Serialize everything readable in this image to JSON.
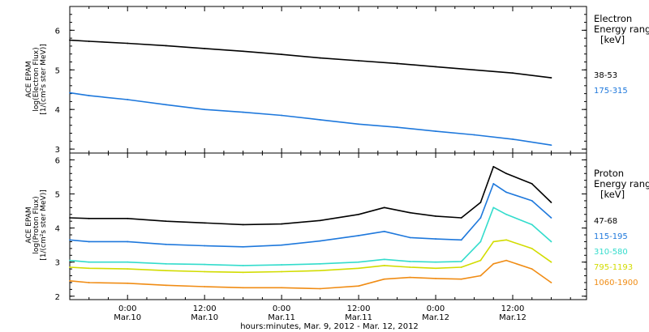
{
  "xaxis": {
    "title": "hours:minutes, Mar.  9, 2012 - Mar. 12, 2012",
    "range": [
      "2012-03-09T15:00",
      "2012-03-12T23:30"
    ],
    "ticks": [
      {
        "at": "2012-03-10T00:00",
        "time": "0:00",
        "date": "Mar.10"
      },
      {
        "at": "2012-03-10T12:00",
        "time": "12:00",
        "date": "Mar.10"
      },
      {
        "at": "2012-03-11T00:00",
        "time": "0:00",
        "date": "Mar.11"
      },
      {
        "at": "2012-03-11T12:00",
        "time": "12:00",
        "date": "Mar.11"
      },
      {
        "at": "2012-03-12T00:00",
        "time": "0:00",
        "date": "Mar.12"
      },
      {
        "at": "2012-03-12T12:00",
        "time": "12:00",
        "date": "Mar.12"
      }
    ],
    "minor_tick_hours": 3
  },
  "chart_data": [
    {
      "type": "line",
      "panel": "electron",
      "ylabel_lines": [
        "ACE EPAM",
        "log(Electron Flux)",
        "[1/(cm²s ster MeV)]"
      ],
      "ylim": [
        2.9,
        6.6
      ],
      "yticks": [
        3,
        4,
        5,
        6
      ],
      "legend_title_lines": [
        "Electron",
        "Energy ranges",
        "[keV]"
      ],
      "series": [
        {
          "name": "38-53",
          "color": "#000000",
          "x": [
            "2012-03-09T15:00",
            "2012-03-09T18:00",
            "2012-03-10T00:00",
            "2012-03-10T06:00",
            "2012-03-10T12:00",
            "2012-03-10T18:00",
            "2012-03-11T00:00",
            "2012-03-11T06:00",
            "2012-03-11T12:00",
            "2012-03-11T18:00",
            "2012-03-12T00:00",
            "2012-03-12T06:00",
            "2012-03-12T12:00",
            "2012-03-12T18:00"
          ],
          "values": [
            5.75,
            5.72,
            5.67,
            5.61,
            5.54,
            5.47,
            5.39,
            5.3,
            5.23,
            5.16,
            5.08,
            5.0,
            4.92,
            4.8
          ]
        },
        {
          "name": "175-315",
          "color": "#1e78dc",
          "x": [
            "2012-03-09T15:00",
            "2012-03-09T18:00",
            "2012-03-10T00:00",
            "2012-03-10T06:00",
            "2012-03-10T12:00",
            "2012-03-10T18:00",
            "2012-03-11T00:00",
            "2012-03-11T06:00",
            "2012-03-11T12:00",
            "2012-03-11T18:00",
            "2012-03-12T00:00",
            "2012-03-12T06:00",
            "2012-03-12T12:00",
            "2012-03-12T18:00"
          ],
          "values": [
            4.42,
            4.35,
            4.25,
            4.12,
            4.0,
            3.93,
            3.85,
            3.74,
            3.63,
            3.55,
            3.45,
            3.36,
            3.25,
            3.1
          ]
        }
      ]
    },
    {
      "type": "line",
      "panel": "proton",
      "ylabel_lines": [
        "ACE EPAM",
        "log(Proton Flux)",
        "[1/(cm²s ster MeV)]"
      ],
      "ylim": [
        1.9,
        6.2
      ],
      "yticks": [
        2,
        3,
        4,
        5,
        6
      ],
      "legend_title_lines": [
        "Proton",
        "Energy ranges",
        "[keV]"
      ],
      "series": [
        {
          "name": "47-68",
          "color": "#000000",
          "x": [
            "2012-03-09T15:00",
            "2012-03-09T18:00",
            "2012-03-10T00:00",
            "2012-03-10T06:00",
            "2012-03-10T12:00",
            "2012-03-10T18:00",
            "2012-03-11T00:00",
            "2012-03-11T06:00",
            "2012-03-11T12:00",
            "2012-03-11T16:00",
            "2012-03-11T20:00",
            "2012-03-12T00:00",
            "2012-03-12T04:00",
            "2012-03-12T07:00",
            "2012-03-12T09:00",
            "2012-03-12T11:00",
            "2012-03-12T15:00",
            "2012-03-12T18:00"
          ],
          "values": [
            4.3,
            4.28,
            4.28,
            4.2,
            4.15,
            4.1,
            4.12,
            4.22,
            4.4,
            4.6,
            4.45,
            4.35,
            4.3,
            4.75,
            5.8,
            5.6,
            5.3,
            4.75
          ]
        },
        {
          "name": "115-195",
          "color": "#1e78dc",
          "x": [
            "2012-03-09T15:00",
            "2012-03-09T18:00",
            "2012-03-10T00:00",
            "2012-03-10T06:00",
            "2012-03-10T12:00",
            "2012-03-10T18:00",
            "2012-03-11T00:00",
            "2012-03-11T06:00",
            "2012-03-11T12:00",
            "2012-03-11T16:00",
            "2012-03-11T20:00",
            "2012-03-12T00:00",
            "2012-03-12T04:00",
            "2012-03-12T07:00",
            "2012-03-12T09:00",
            "2012-03-12T11:00",
            "2012-03-12T15:00",
            "2012-03-12T18:00"
          ],
          "values": [
            3.65,
            3.6,
            3.6,
            3.52,
            3.48,
            3.45,
            3.5,
            3.62,
            3.78,
            3.9,
            3.72,
            3.68,
            3.65,
            4.3,
            5.3,
            5.05,
            4.8,
            4.3
          ]
        },
        {
          "name": "310-580",
          "color": "#33dccc",
          "x": [
            "2012-03-09T15:00",
            "2012-03-09T18:00",
            "2012-03-10T00:00",
            "2012-03-10T06:00",
            "2012-03-10T12:00",
            "2012-03-10T18:00",
            "2012-03-11T00:00",
            "2012-03-11T06:00",
            "2012-03-11T12:00",
            "2012-03-11T16:00",
            "2012-03-11T20:00",
            "2012-03-12T00:00",
            "2012-03-12T04:00",
            "2012-03-12T07:00",
            "2012-03-12T09:00",
            "2012-03-12T11:00",
            "2012-03-12T15:00",
            "2012-03-12T18:00"
          ],
          "values": [
            3.05,
            3.0,
            3.0,
            2.95,
            2.93,
            2.9,
            2.92,
            2.95,
            3.0,
            3.08,
            3.02,
            3.0,
            3.02,
            3.6,
            4.6,
            4.4,
            4.1,
            3.6
          ]
        },
        {
          "name": "795-1193",
          "color": "#d2dc00",
          "x": [
            "2012-03-09T15:00",
            "2012-03-09T18:00",
            "2012-03-10T00:00",
            "2012-03-10T06:00",
            "2012-03-10T12:00",
            "2012-03-10T18:00",
            "2012-03-11T00:00",
            "2012-03-11T06:00",
            "2012-03-11T12:00",
            "2012-03-11T16:00",
            "2012-03-11T20:00",
            "2012-03-12T00:00",
            "2012-03-12T04:00",
            "2012-03-12T07:00",
            "2012-03-12T09:00",
            "2012-03-12T11:00",
            "2012-03-12T15:00",
            "2012-03-12T18:00"
          ],
          "values": [
            2.85,
            2.82,
            2.8,
            2.75,
            2.72,
            2.7,
            2.72,
            2.75,
            2.82,
            2.9,
            2.85,
            2.82,
            2.85,
            3.05,
            3.6,
            3.65,
            3.4,
            3.0
          ]
        },
        {
          "name": "1060-1900",
          "color": "#f08c14",
          "x": [
            "2012-03-09T15:00",
            "2012-03-09T18:00",
            "2012-03-10T00:00",
            "2012-03-10T06:00",
            "2012-03-10T12:00",
            "2012-03-10T18:00",
            "2012-03-11T00:00",
            "2012-03-11T06:00",
            "2012-03-11T12:00",
            "2012-03-11T16:00",
            "2012-03-11T20:00",
            "2012-03-12T00:00",
            "2012-03-12T04:00",
            "2012-03-12T07:00",
            "2012-03-12T09:00",
            "2012-03-12T11:00",
            "2012-03-12T15:00",
            "2012-03-12T18:00"
          ],
          "values": [
            2.45,
            2.4,
            2.38,
            2.32,
            2.28,
            2.25,
            2.25,
            2.22,
            2.3,
            2.5,
            2.55,
            2.52,
            2.5,
            2.6,
            2.95,
            3.05,
            2.8,
            2.4
          ]
        }
      ]
    }
  ]
}
